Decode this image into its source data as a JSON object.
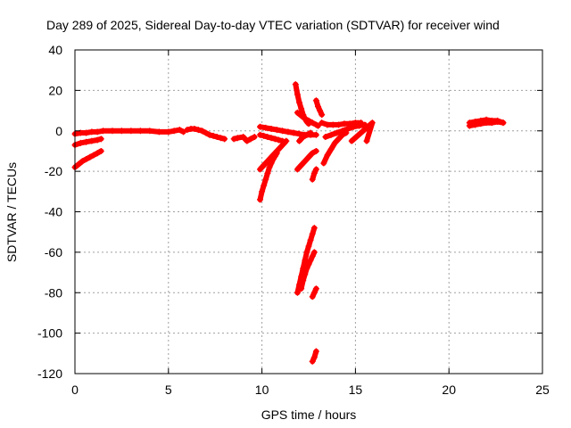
{
  "colors": {
    "series": "#ff0000",
    "grid": "#a0a0a0",
    "frame": "#000000",
    "background": "#ffffff"
  },
  "chart_data": {
    "type": "scatter",
    "title": "Day 289 of 2025, Sidereal Day-to-day VTEC variation (SDTVAR) for receiver wind",
    "xlabel": "GPS time / hours",
    "ylabel": "SDTVAR / TECUs",
    "xlim": [
      0,
      25
    ],
    "ylim": [
      -120,
      40
    ],
    "xticks": [
      0,
      5,
      10,
      15,
      20,
      25
    ],
    "yticks": [
      -120,
      -100,
      -80,
      -60,
      -40,
      -20,
      0,
      20,
      40
    ],
    "grid": true,
    "marker": "plus",
    "series": [
      {
        "name": "SDTVAR",
        "segments": [
          {
            "x": [
              0.0,
              0.3,
              0.6,
              0.9,
              1.2,
              1.5,
              2.0,
              2.5,
              3.0,
              3.5,
              4.0,
              4.5,
              5.0,
              5.3,
              5.6,
              5.8
            ],
            "y": [
              -1.5,
              -1,
              -1,
              -0.5,
              -0.5,
              0,
              0,
              0,
              0,
              0,
              0,
              -0.5,
              -0.5,
              0,
              0.5,
              -0.5
            ]
          },
          {
            "x": [
              6.0,
              6.2,
              6.4,
              6.6,
              6.8,
              7.0,
              7.2,
              7.4,
              7.6,
              7.8,
              8.0
            ],
            "y": [
              0.5,
              1,
              1,
              0.5,
              0,
              -1,
              -2,
              -2.5,
              -3,
              -3.5,
              -4
            ]
          },
          {
            "x": [
              0.0,
              0.3,
              0.6,
              0.9,
              1.2,
              1.4
            ],
            "y": [
              -7,
              -6,
              -5.5,
              -5,
              -4.5,
              -4
            ]
          },
          {
            "x": [
              0.0,
              0.2,
              0.4,
              0.6,
              0.8,
              1.0,
              1.2,
              1.4
            ],
            "y": [
              -18,
              -16.5,
              -15,
              -14,
              -13,
              -12,
              -11,
              -10
            ]
          },
          {
            "x": [
              8.5,
              8.7,
              9.0,
              9.2,
              9.4,
              9.6
            ],
            "y": [
              -4,
              -3.5,
              -3,
              -5,
              -4,
              -3
            ]
          },
          {
            "x": [
              9.9,
              10.2,
              10.5,
              10.8,
              11.1,
              11.4,
              11.7,
              12.0,
              12.3,
              12.6,
              12.9
            ],
            "y": [
              2,
              1.5,
              1,
              0.5,
              0,
              -0.5,
              -1,
              -1.5,
              -2,
              -2,
              -2
            ]
          },
          {
            "x": [
              9.9,
              10.1,
              10.3,
              10.5,
              10.7,
              10.9,
              11.1
            ],
            "y": [
              -2,
              -2.5,
              -3,
              -3.5,
              -4,
              -4.5,
              -5
            ]
          },
          {
            "x": [
              9.9,
              10.1,
              10.3,
              10.5,
              10.7,
              10.9,
              11.1,
              11.3
            ],
            "y": [
              -19,
              -17,
              -15,
              -13,
              -11,
              -9,
              -7,
              -5
            ]
          },
          {
            "x": [
              9.9,
              10.0,
              10.1,
              10.2,
              10.3,
              10.4,
              10.5,
              10.6,
              10.7,
              10.8
            ],
            "y": [
              -34,
              -30,
              -27,
              -24,
              -21,
              -18,
              -16,
              -14,
              -12.5,
              -11
            ]
          },
          {
            "x": [
              11.8,
              11.9,
              12.0,
              12.1,
              12.2,
              12.3,
              12.4,
              12.5
            ],
            "y": [
              23,
              18,
              14,
              11,
              8,
              6,
              4.5,
              3.5
            ]
          },
          {
            "x": [
              11.9,
              12.1,
              12.3,
              12.5,
              12.7,
              12.9,
              13.0
            ],
            "y": [
              9,
              7.5,
              6,
              5,
              4,
              3,
              2.5
            ]
          },
          {
            "x": [
              12.0,
              12.1,
              12.2,
              12.3,
              12.4,
              12.5,
              12.6
            ],
            "y": [
              -5,
              -4,
              -3,
              -2.5,
              -2,
              -1.5,
              -1
            ]
          },
          {
            "x": [
              11.9,
              12.1,
              12.3,
              12.5,
              12.7,
              12.9
            ],
            "y": [
              -19,
              -17,
              -15,
              -13,
              -11,
              -10
            ]
          },
          {
            "x": [
              12.9,
              13.0,
              13.1,
              13.2
            ],
            "y": [
              15,
              12,
              10,
              8
            ]
          },
          {
            "x": [
              13.2,
              13.5,
              13.8,
              14.1,
              14.4,
              14.7,
              15.0,
              15.3
            ],
            "y": [
              4,
              3,
              3,
              3,
              3.5,
              3.5,
              4,
              4
            ]
          },
          {
            "x": [
              13.4,
              13.7,
              14.0,
              14.3,
              14.6,
              14.9,
              15.2,
              15.5
            ],
            "y": [
              -3,
              -2,
              -1,
              0,
              1,
              2,
              2.5,
              3
            ]
          },
          {
            "x": [
              13.3,
              13.5,
              13.7,
              13.9,
              14.1,
              14.3,
              14.5
            ],
            "y": [
              -16,
              -12,
              -9,
              -6,
              -4,
              -2,
              -1
            ]
          },
          {
            "x": [
              12.7,
              12.8,
              12.9
            ],
            "y": [
              -24,
              -21,
              -19
            ]
          },
          {
            "x": [
              11.9,
              12.0,
              12.1,
              12.2,
              12.3,
              12.4,
              12.5,
              12.6,
              12.7,
              12.8
            ],
            "y": [
              -80,
              -76,
              -72,
              -68,
              -64,
              -60,
              -57,
              -54,
              -51,
              -48
            ]
          },
          {
            "x": [
              12.1,
              12.2,
              12.3,
              12.4,
              12.5,
              12.6,
              12.7,
              12.8
            ],
            "y": [
              -78,
              -74,
              -71,
              -68,
              -66,
              -64,
              -62,
              -60
            ]
          },
          {
            "x": [
              12.7,
              12.8,
              12.9
            ],
            "y": [
              -82,
              -80,
              -78
            ]
          },
          {
            "x": [
              12.7,
              12.8,
              12.9
            ],
            "y": [
              -114,
              -112,
              -109
            ]
          },
          {
            "x": [
              14.8,
              15.9,
              15.6
            ],
            "y": [
              -5,
              4,
              -5
            ]
          },
          {
            "x": [
              21.1,
              21.4,
              21.7,
              22.0,
              22.3,
              22.6,
              22.9
            ],
            "y": [
              2.5,
              3,
              3.5,
              4,
              4,
              4.5,
              4
            ]
          },
          {
            "x": [
              21.1,
              21.4,
              21.7,
              22.0,
              22.3,
              22.6,
              22.9
            ],
            "y": [
              4,
              4.5,
              5,
              5.5,
              5,
              5,
              4
            ]
          }
        ]
      }
    ]
  }
}
